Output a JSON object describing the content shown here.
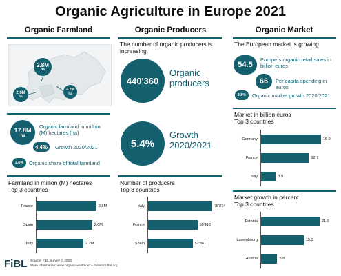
{
  "title": "Organic Agriculture in Europe",
  "year": "2021",
  "columns": {
    "farmland": "Organic Farmland",
    "producers": "Organic Producers",
    "market": "Organic Market"
  },
  "map_bubbles": [
    {
      "value": "2.8M",
      "unit": "ha"
    },
    {
      "value": "2.6M",
      "unit": "ha"
    },
    {
      "value": "2.2M",
      "unit": "ha"
    }
  ],
  "farmland_stats": {
    "area": {
      "value": "17.8M",
      "unit": "ha",
      "label": "Organic farmland in million (M) hectares (ha)"
    },
    "growth": {
      "value": "4.4%",
      "label": "Growth 2020/2021"
    },
    "share": {
      "value": "3.6%",
      "label": "Organic share of total farmland"
    }
  },
  "producer_stats": {
    "intro": "The number of organic producers is increasing",
    "count": {
      "value": "440'360",
      "label": "Organic producers"
    },
    "growth": {
      "value": "5.4%",
      "label": "Growth 2020/2021"
    }
  },
  "market_stats": {
    "intro": "The European market is growing",
    "sales": {
      "value": "54.5",
      "label": "Europe´s organic retail sales in billion euros"
    },
    "per_capita": {
      "value": "66",
      "label": "Per capita spending in euros"
    },
    "growth": {
      "value": "3.8%",
      "label": "Organic market growth 2020/2021"
    }
  },
  "footer": {
    "logo": "FiBL",
    "source": "Source: FiBL survey © 2023",
    "more": "More information: www.organic-world.net – statistics.fibl.org"
  },
  "chart_data": [
    {
      "type": "bar",
      "title": "Farmland in million (M) hectares",
      "subtitle": "Top 3 countries",
      "categories": [
        "France",
        "Spain",
        "Italy"
      ],
      "values": [
        2.8,
        2.6,
        2.2
      ],
      "labels": [
        "2.8M",
        "2.6M",
        "2.2M"
      ],
      "xlim": [
        0,
        3.0
      ]
    },
    {
      "type": "bar",
      "title": "Number of producers",
      "subtitle": "Top 3 countries",
      "categories": [
        "Italy",
        "France",
        "Spain"
      ],
      "values": [
        75874,
        58413,
        52861
      ],
      "labels": [
        "75'874",
        "58'413",
        "52'861"
      ],
      "xlim": [
        0,
        80000
      ]
    },
    {
      "type": "bar",
      "title": "Market in billion euros",
      "subtitle": "Top 3 countries",
      "categories": [
        "Germany",
        "France",
        "Italy"
      ],
      "values": [
        15.9,
        12.7,
        3.9
      ],
      "labels": [
        "15.9",
        "12.7",
        "3.9"
      ],
      "xlim": [
        0,
        17
      ]
    },
    {
      "type": "bar",
      "title": "Market growth in percent",
      "subtitle": "Top 3 countries",
      "categories": [
        "Estonia",
        "Luxembourg",
        "Austria"
      ],
      "values": [
        21.0,
        15.3,
        5.8
      ],
      "labels": [
        "21.0",
        "15.3",
        "5.8"
      ],
      "xlim": [
        0,
        23
      ]
    }
  ],
  "colors": {
    "accent": "#14606f"
  }
}
